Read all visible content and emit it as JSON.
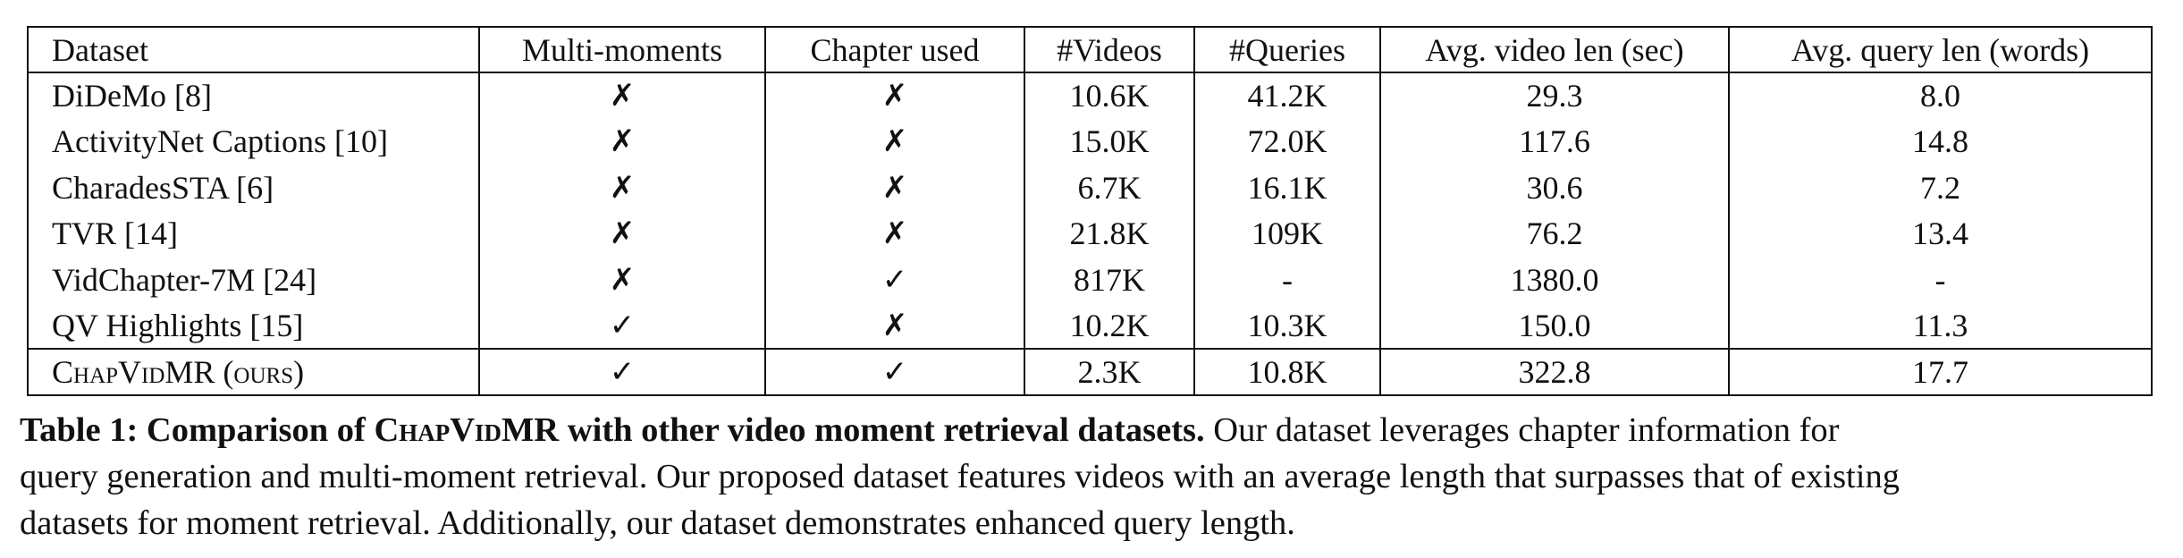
{
  "table": {
    "headers": [
      "Dataset",
      "Multi-moments",
      "Chapter used",
      "#Videos",
      "#Queries",
      "Avg. video len (sec)",
      "Avg. query len (words)"
    ],
    "rows": [
      [
        "DiDeMo [8]",
        "✗",
        "✗",
        "10.6K",
        "41.2K",
        "29.3",
        "8.0"
      ],
      [
        "ActivityNet Captions [10]",
        "✗",
        "✗",
        "15.0K",
        "72.0K",
        "117.6",
        "14.8"
      ],
      [
        "CharadesSTA [6]",
        "✗",
        "✗",
        "6.7K",
        "16.1K",
        "30.6",
        "7.2"
      ],
      [
        "TVR [14]",
        "✗",
        "✗",
        "21.8K",
        "109K",
        "76.2",
        "13.4"
      ],
      [
        "VidChapter-7M [24]",
        "✗",
        "✓",
        "817K",
        "-",
        "1380.0",
        "-"
      ],
      [
        "QV Highlights [15]",
        "✓",
        "✗",
        "10.2K",
        "10.3K",
        "150.0",
        "11.3"
      ]
    ],
    "ours_row": [
      "ChapVidMR (ours)",
      "✓",
      "✓",
      "2.3K",
      "10.8K",
      "322.8",
      "17.7"
    ]
  },
  "caption": {
    "lead_prefix": "Table 1: Comparison of ",
    "lead_name": "ChapVidMR",
    "lead_suffix": " with other video moment retrieval datasets.",
    "line1_rest": " Our dataset leverages chapter information for",
    "line2": "query generation and multi-moment retrieval. Our proposed dataset features videos with an average length that surpasses that of existing",
    "line3": "datasets for moment retrieval. Additionally, our dataset demonstrates enhanced query length."
  }
}
